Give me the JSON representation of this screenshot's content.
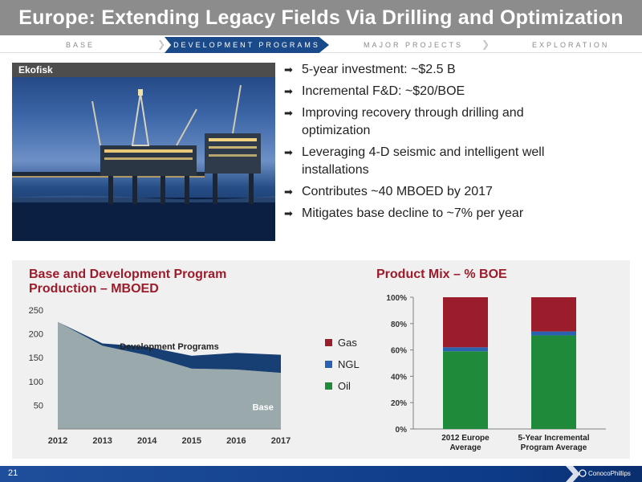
{
  "slide": {
    "title": "Europe: Extending Legacy Fields Via Drilling and Optimization",
    "page_number": "21",
    "logo_text": "ConocoPhillips",
    "colors": {
      "title_bar": "#8c8c8c",
      "nav_active": "#1a4a8a",
      "accent_red": "#9b1c2a",
      "footer": "#0d3a86"
    }
  },
  "nav": {
    "items": [
      {
        "label": "BASE",
        "active": false
      },
      {
        "label": "DEVELOPMENT PROGRAMS",
        "active": true
      },
      {
        "label": "MAJOR PROJECTS",
        "active": false
      },
      {
        "label": "EXPLORATION",
        "active": false
      }
    ]
  },
  "photo": {
    "label": "Ekofisk",
    "icon": "offshore-platform-photo"
  },
  "bullets": [
    "5-year investment: ~$2.5 B",
    "Incremental F&D: ~$20/BOE",
    "Improving recovery through drilling and optimization",
    "Leveraging 4-D seismic and intelligent well installations",
    "Contributes ~40 MBOED by 2017",
    "Mitigates base decline to ~7% per year"
  ],
  "chart_data": [
    {
      "type": "area",
      "title": "Base and Development Program Production – MBOED",
      "x": [
        "2012",
        "2013",
        "2014",
        "2015",
        "2016",
        "2017"
      ],
      "yticks": [
        "50",
        "100",
        "150",
        "200",
        "250"
      ],
      "ylim": [
        0,
        250
      ],
      "series": [
        {
          "name": "Base",
          "values": [
            225,
            175,
            155,
            127,
            125,
            118
          ],
          "color": "#9aa9ab"
        },
        {
          "name": "Development Programs",
          "values": [
            0,
            5,
            18,
            27,
            35,
            38
          ],
          "color": "#173f73"
        }
      ],
      "grid": false
    },
    {
      "type": "bar",
      "stacked": true,
      "title": "Product Mix – % BOE",
      "categories": [
        "2012 Europe Average",
        "5-Year Incremental Program Average"
      ],
      "yticks": [
        "0%",
        "20%",
        "40%",
        "60%",
        "80%",
        "100%"
      ],
      "ylim": [
        0,
        100
      ],
      "series": [
        {
          "name": "Oil",
          "values": [
            59,
            71
          ],
          "color": "#1f8a3a"
        },
        {
          "name": "NGL",
          "values": [
            3,
            3
          ],
          "color": "#2a62b0"
        },
        {
          "name": "Gas",
          "values": [
            38,
            26
          ],
          "color": "#9b1c2a"
        }
      ],
      "legend_order": [
        "Gas",
        "NGL",
        "Oil"
      ],
      "legend_position": "left"
    }
  ]
}
